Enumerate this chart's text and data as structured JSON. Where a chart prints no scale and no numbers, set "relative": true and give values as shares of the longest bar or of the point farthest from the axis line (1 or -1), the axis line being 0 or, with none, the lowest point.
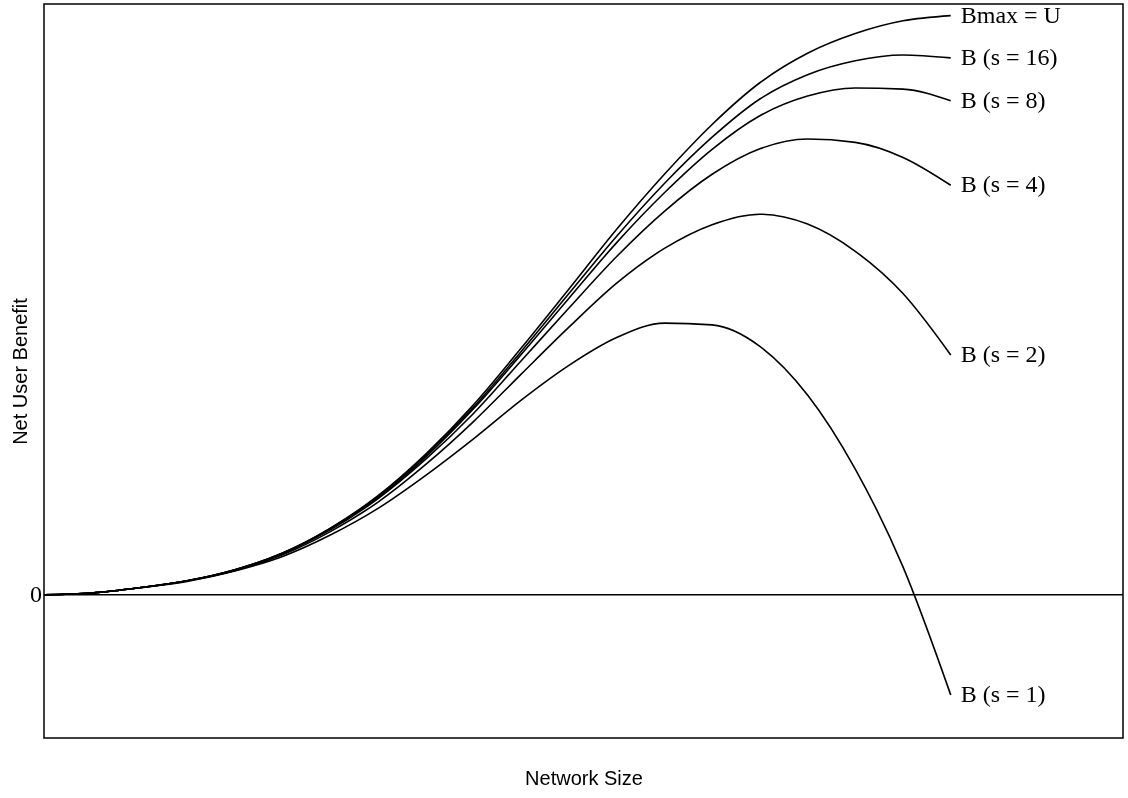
{
  "chart_data": {
    "type": "line",
    "relative": true,
    "xlabel": "Network Size",
    "ylabel": "Net User Benefit",
    "categories": [
      null,
      null,
      null,
      null,
      null,
      null,
      null,
      null,
      null,
      null,
      null,
      null,
      null,
      null,
      null,
      null,
      null,
      null,
      null,
      null
    ],
    "series": [
      {
        "name": "Bmax = U",
        "color": "#000000",
        "values": [
          0,
          0.003,
          0.012,
          0.024,
          0.043,
          0.072,
          0.115,
          0.171,
          0.243,
          0.328,
          0.426,
          0.528,
          0.631,
          0.726,
          0.812,
          0.884,
          0.935,
          0.969,
          0.991,
          1
        ]
      },
      {
        "name": "B (s = 16)",
        "color": "#000000",
        "values": [
          0,
          0.003,
          0.012,
          0.024,
          0.043,
          0.072,
          0.114,
          0.17,
          0.241,
          0.324,
          0.42,
          0.52,
          0.619,
          0.71,
          0.79,
          0.856,
          0.898,
          0.922,
          0.932,
          0.927
        ]
      },
      {
        "name": "B (s = 8)",
        "color": "#000000",
        "values": [
          0,
          0.003,
          0.012,
          0.024,
          0.043,
          0.071,
          0.114,
          0.168,
          0.238,
          0.321,
          0.415,
          0.512,
          0.608,
          0.694,
          0.769,
          0.827,
          0.861,
          0.875,
          0.873,
          0.853
        ]
      },
      {
        "name": "B (s = 4)",
        "color": "#000000",
        "values": [
          0,
          0.003,
          0.012,
          0.024,
          0.042,
          0.071,
          0.112,
          0.166,
          0.234,
          0.313,
          0.404,
          0.495,
          0.584,
          0.662,
          0.726,
          0.77,
          0.787,
          0.781,
          0.755,
          0.707
        ]
      },
      {
        "name": "B (s = 2)",
        "color": "#000000",
        "values": [
          0,
          0.003,
          0.012,
          0.024,
          0.042,
          0.069,
          0.109,
          0.16,
          0.225,
          0.299,
          0.381,
          0.462,
          0.538,
          0.598,
          0.639,
          0.657,
          0.64,
          0.593,
          0.52,
          0.414
        ]
      },
      {
        "name": "B (s = 1)",
        "color": "#000000",
        "values": [
          0,
          0.003,
          0.012,
          0.023,
          0.041,
          0.066,
          0.103,
          0.149,
          0.206,
          0.269,
          0.336,
          0.396,
          0.444,
          0.469,
          0.466,
          0.429,
          0.345,
          0.217,
          0.048,
          -0.173
        ]
      }
    ],
    "ref_lines": [
      {
        "axis": "y",
        "value": 0,
        "label": "0",
        "color": "#000000"
      }
    ],
    "legend": false,
    "grid": false,
    "marker": "none",
    "line_style": "solid"
  }
}
